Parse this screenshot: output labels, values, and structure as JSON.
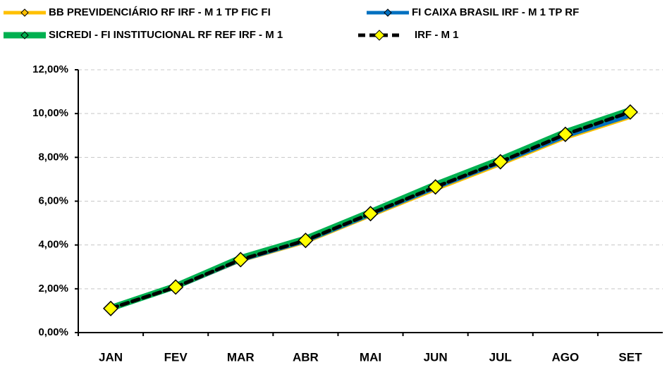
{
  "chart_data": {
    "type": "line",
    "categories": [
      "JAN",
      "FEV",
      "MAR",
      "ABR",
      "MAI",
      "JUN",
      "JUL",
      "AGO",
      "SET"
    ],
    "series": [
      {
        "name": "BB PREVIDENCIÁRIO RF IRF - M 1 TP FIC FI",
        "color": "#ffc000",
        "values": [
          1.07,
          2.02,
          3.25,
          4.1,
          5.3,
          6.5,
          7.65,
          8.85,
          9.8
        ]
      },
      {
        "name": "FI CAIXA BRASIL IRF - M 1 TP RF",
        "color": "#0070c0",
        "values": [
          1.09,
          2.05,
          3.3,
          4.17,
          5.38,
          6.6,
          7.75,
          8.95,
          9.9
        ]
      },
      {
        "name": "SICREDI - FI INSTITUCIONAL RF REF IRF - M 1",
        "color": "#00b050",
        "values": [
          1.12,
          2.12,
          3.4,
          4.28,
          5.5,
          6.75,
          7.9,
          9.15,
          10.15
        ]
      },
      {
        "name": "IRF - M 1",
        "color": "#000000",
        "values": [
          1.1,
          2.08,
          3.33,
          4.21,
          5.43,
          6.65,
          7.8,
          9.05,
          10.07
        ]
      }
    ],
    "ylim": [
      0,
      12
    ],
    "yticks": [
      {
        "value": 0,
        "label": "0,00%"
      },
      {
        "value": 2,
        "label": "2,00%"
      },
      {
        "value": 4,
        "label": "4,00%"
      },
      {
        "value": 6,
        "label": "6,00%"
      },
      {
        "value": 8,
        "label": "8,00%"
      },
      {
        "value": 10,
        "label": "10,00%"
      },
      {
        "value": 12,
        "label": "12,00%"
      }
    ],
    "grid": true
  }
}
